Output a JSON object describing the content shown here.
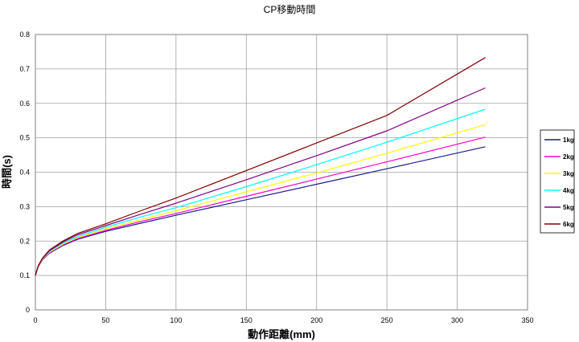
{
  "chart_data": {
    "type": "line",
    "title": "CP移動時間",
    "xlabel": "動作距離(mm)",
    "ylabel": "時間(s)",
    "xlim": [
      0,
      350
    ],
    "ylim": [
      0,
      0.8
    ],
    "xticks": [
      "0",
      "50",
      "100",
      "150",
      "200",
      "250",
      "300",
      "350"
    ],
    "yticks": [
      "0",
      "0.1",
      "0.2",
      "0.3",
      "0.4",
      "0.5",
      "0.6",
      "0.7",
      "0.8"
    ],
    "grid": true,
    "legend_position": "right",
    "x": [
      0,
      2,
      5,
      10,
      20,
      30,
      50,
      75,
      100,
      150,
      200,
      250,
      320
    ],
    "series": [
      {
        "name": "1kg",
        "color": "#1a1a8c",
        "values": [
          0.1,
          0.125,
          0.145,
          0.165,
          0.188,
          0.205,
          0.228,
          0.252,
          0.275,
          0.32,
          0.365,
          0.41,
          0.474
        ]
      },
      {
        "name": "2kg",
        "color": "#ff00cc",
        "values": [
          0.1,
          0.126,
          0.146,
          0.166,
          0.19,
          0.207,
          0.231,
          0.257,
          0.28,
          0.33,
          0.38,
          0.43,
          0.502
        ]
      },
      {
        "name": "3kg",
        "color": "#ffff00",
        "values": [
          0.1,
          0.126,
          0.147,
          0.168,
          0.192,
          0.21,
          0.235,
          0.262,
          0.288,
          0.343,
          0.398,
          0.455,
          0.538
        ]
      },
      {
        "name": "4kg",
        "color": "#00ffff",
        "values": [
          0.1,
          0.127,
          0.148,
          0.17,
          0.195,
          0.213,
          0.24,
          0.27,
          0.297,
          0.358,
          0.422,
          0.487,
          0.583
        ]
      },
      {
        "name": "5kg",
        "color": "#800080",
        "values": [
          0.1,
          0.127,
          0.149,
          0.172,
          0.198,
          0.218,
          0.245,
          0.278,
          0.31,
          0.378,
          0.448,
          0.52,
          0.645
        ]
      },
      {
        "name": "6kg",
        "color": "#800000",
        "values": [
          0.1,
          0.128,
          0.15,
          0.174,
          0.201,
          0.222,
          0.25,
          0.288,
          0.325,
          0.405,
          0.485,
          0.565,
          0.733
        ]
      }
    ]
  }
}
